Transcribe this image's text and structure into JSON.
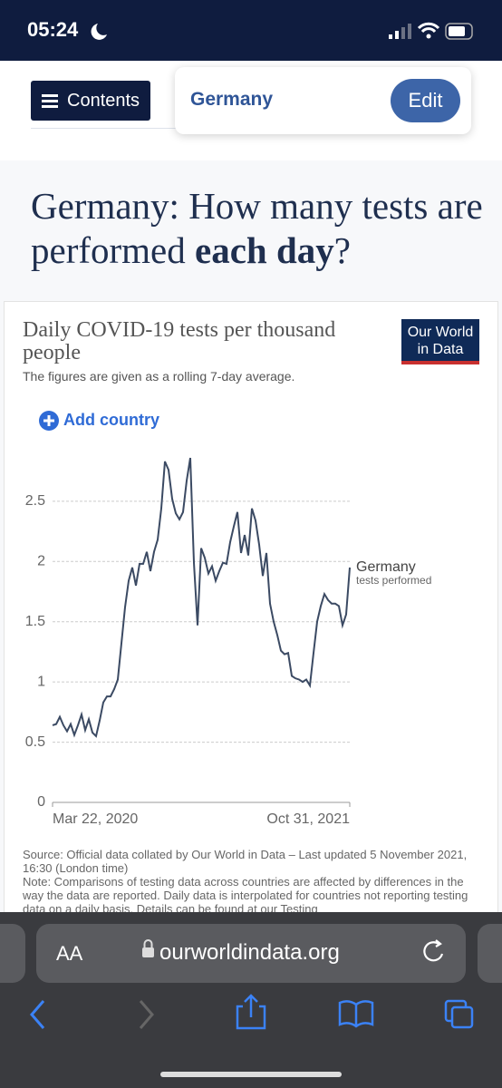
{
  "status_bar": {
    "time": "05:24"
  },
  "nav": {
    "contents_button": "Contents",
    "country": "Germany",
    "edit_button": "Edit"
  },
  "heading": {
    "text_before": "Germany: How many tests are performed ",
    "emphasis": "each day",
    "text_after": "?"
  },
  "chart_data": {
    "type": "line",
    "title": "Daily COVID-19 tests per thousand people",
    "subtitle": "The figures are given as a rolling 7-day average.",
    "logo": [
      "Our World",
      "in Data"
    ],
    "add_country": "Add country",
    "categories": [
      "Mar 22, 2020",
      null,
      null,
      null,
      null,
      null,
      null,
      null,
      null,
      null,
      null,
      null,
      null,
      null,
      null,
      null,
      null,
      null,
      null,
      null,
      null,
      null,
      null,
      null,
      null,
      null,
      null,
      null,
      null,
      null,
      null,
      null,
      null,
      null,
      null,
      null,
      null,
      null,
      null,
      null,
      null,
      null,
      null,
      null,
      null,
      null,
      null,
      null,
      null,
      null,
      null,
      null,
      null,
      null,
      null,
      null,
      null,
      null,
      null,
      null,
      null,
      null,
      null,
      null,
      null,
      null,
      null,
      null,
      null,
      null,
      null,
      null,
      null,
      null,
      null,
      null,
      null,
      null,
      null,
      null,
      null,
      null,
      "Oct 31, 2021"
    ],
    "series": [
      {
        "name": "Germany",
        "color": "#3b4a63",
        "values": [
          0.64,
          0.65,
          0.71,
          0.64,
          0.59,
          0.65,
          0.56,
          0.64,
          0.73,
          0.6,
          0.69,
          0.58,
          0.55,
          0.68,
          0.83,
          0.88,
          0.88,
          0.94,
          1.02,
          1.32,
          1.62,
          1.84,
          1.95,
          1.8,
          1.98,
          1.98,
          2.08,
          1.92,
          2.08,
          2.18,
          2.44,
          2.83,
          2.76,
          2.52,
          2.4,
          2.35,
          2.41,
          2.67,
          2.86,
          1.99,
          1.47,
          2.11,
          2.03,
          1.9,
          1.96,
          1.84,
          1.92,
          1.99,
          1.98,
          2.16,
          2.29,
          2.41,
          2.07,
          2.22,
          2.05,
          2.44,
          2.34,
          2.14,
          1.88,
          2.07,
          1.65,
          1.5,
          1.39,
          1.26,
          1.23,
          1.24,
          1.05,
          1.03,
          1.02,
          1.0,
          1.02,
          0.97,
          1.24,
          1.5,
          1.63,
          1.73,
          1.68,
          1.65,
          1.65,
          1.63,
          1.47,
          1.56,
          1.95
        ]
      }
    ],
    "series_label": "tests performed",
    "ylim": [
      0,
      2.86
    ],
    "yticks": [
      0,
      0.5,
      1,
      1.5,
      2,
      2.5
    ],
    "grid": true,
    "source": "Source: Official data collated by Our World in Data – Last updated 5 November 2021, 16:30 (London time)",
    "note": "Note: Comparisons of testing data across countries are affected by differences in the way the data are reported. Daily data is interpolated for countries not reporting testing data on a daily basis. Details can be found at our Testing"
  },
  "browser": {
    "text_size": "AA",
    "url": "ourworldindata.org"
  }
}
